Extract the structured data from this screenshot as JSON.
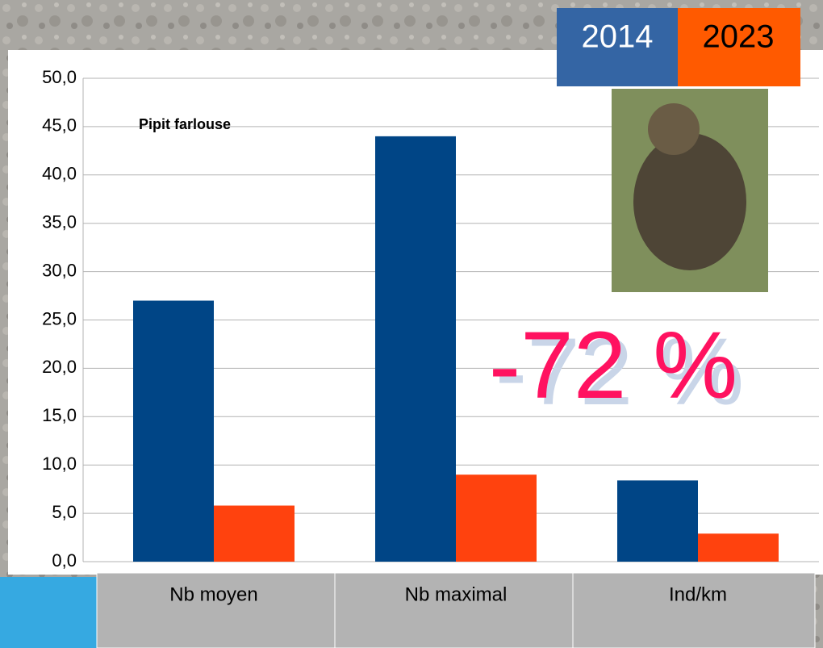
{
  "chart_data": {
    "type": "bar",
    "subtitle": "Pipit farlouse",
    "annotation": "-72 %",
    "categories": [
      "Nb moyen",
      "Nb maximal",
      "Ind/km"
    ],
    "series": [
      {
        "name": "2014",
        "color": "#004586",
        "values": [
          27,
          44,
          8.4
        ]
      },
      {
        "name": "2023",
        "color": "#ff420e",
        "values": [
          5.8,
          9,
          2.9
        ]
      }
    ],
    "ylim": [
      0,
      50
    ],
    "yticks": [
      {
        "value": 0,
        "label": "0,0"
      },
      {
        "value": 5,
        "label": "5,0"
      },
      {
        "value": 10,
        "label": "10,0"
      },
      {
        "value": 15,
        "label": "15,0"
      },
      {
        "value": 20,
        "label": "20,0"
      },
      {
        "value": 25,
        "label": "25,0"
      },
      {
        "value": 30,
        "label": "30,0"
      },
      {
        "value": 35,
        "label": "35,0"
      },
      {
        "value": 40,
        "label": "40,0"
      },
      {
        "value": 45,
        "label": "45,0"
      },
      {
        "value": 50,
        "label": "50,0"
      }
    ],
    "grid": true
  }
}
